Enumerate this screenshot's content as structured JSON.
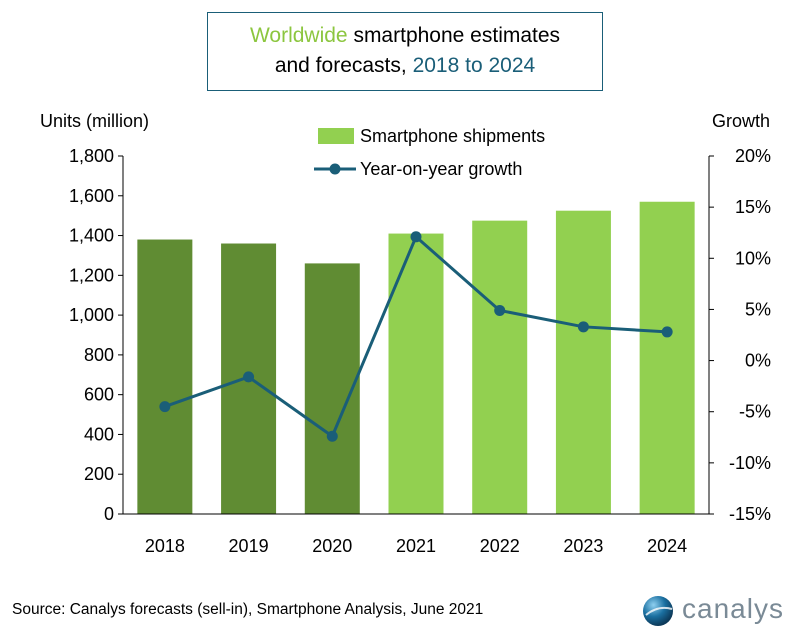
{
  "title": {
    "line1_green": "Worldwide",
    "line1_rest": " smartphone estimates",
    "line2_rest": "and forecasts, ",
    "line2_blue": "2018 to 2024"
  },
  "left_axis_title": "Units (million)",
  "right_axis_title": "Growth",
  "source": "Source: Canalys forecasts (sell-in), Smartphone Analysis, June 2021",
  "logo": {
    "text": "canalys",
    "icon": "globe-icon"
  },
  "colors": {
    "bar_actual": "#608c33",
    "bar_forecast": "#92d050",
    "line": "#1a5e78"
  },
  "chart_data": {
    "type": "bar+line",
    "categories": [
      "2018",
      "2019",
      "2020",
      "2021",
      "2022",
      "2023",
      "2024"
    ],
    "series": [
      {
        "name": "Smartphone shipments",
        "type": "bar",
        "axis": "left",
        "values": [
          1380,
          1360,
          1260,
          1410,
          1475,
          1525,
          1570
        ]
      },
      {
        "name": "Year-on-year growth",
        "type": "line",
        "axis": "right",
        "values": [
          -4.5,
          -1.6,
          -7.4,
          12.1,
          4.9,
          3.3,
          2.8
        ]
      }
    ],
    "left_axis": {
      "min": 0,
      "max": 1800,
      "step": 200,
      "ticks": [
        "0",
        "200",
        "400",
        "600",
        "800",
        "1,000",
        "1,200",
        "1,400",
        "1,600",
        "1,800"
      ]
    },
    "right_axis": {
      "min": -15,
      "max": 20,
      "step": 5,
      "ticks": [
        "-15%",
        "-10%",
        "-5%",
        "0%",
        "5%",
        "10%",
        "15%",
        "20%"
      ]
    },
    "forecast_start_index": 3,
    "legend_position": "top-center",
    "grid": false
  }
}
